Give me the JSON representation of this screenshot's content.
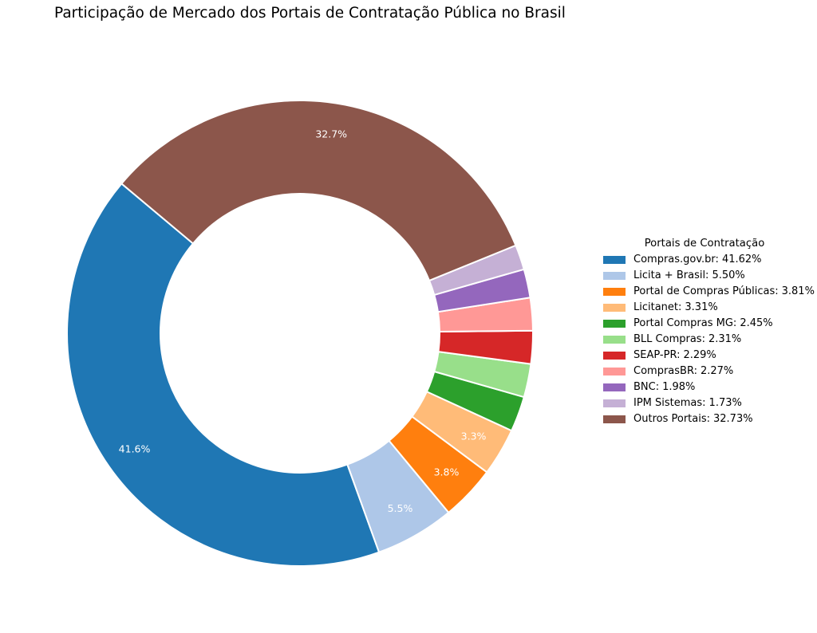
{
  "chart_data": {
    "type": "pie",
    "title": "Participação de Mercado dos Portais de Contratação Pública no Brasil",
    "legend_title": "Portais de Contratação",
    "legend_placement": "right",
    "slices": [
      {
        "label": "Compras.gov.br",
        "value": 41.62,
        "pct_label": "41.6%",
        "legend_value": "41.62%",
        "color": "#1f77b4"
      },
      {
        "label": "Licita + Brasil",
        "value": 5.5,
        "pct_label": "5.5%",
        "legend_value": "5.50%",
        "color": "#aec7e8"
      },
      {
        "label": "Portal de Compras Públicas",
        "value": 3.81,
        "pct_label": "3.8%",
        "legend_value": "3.81%",
        "color": "#ff7f0e"
      },
      {
        "label": "Licitanet",
        "value": 3.31,
        "pct_label": "3.3%",
        "legend_value": "3.31%",
        "color": "#ffbb78"
      },
      {
        "label": "Portal Compras MG",
        "value": 2.45,
        "pct_label": "",
        "legend_value": "2.45%",
        "color": "#2ca02c"
      },
      {
        "label": "BLL Compras",
        "value": 2.31,
        "pct_label": "",
        "legend_value": "2.31%",
        "color": "#98df8a"
      },
      {
        "label": "SEAP-PR",
        "value": 2.29,
        "pct_label": "",
        "legend_value": "2.29%",
        "color": "#d62728"
      },
      {
        "label": "ComprasBR",
        "value": 2.27,
        "pct_label": "",
        "legend_value": "2.27%",
        "color": "#ff9896"
      },
      {
        "label": "BNC",
        "value": 1.98,
        "pct_label": "",
        "legend_value": "1.98%",
        "color": "#9467bd"
      },
      {
        "label": "IPM Sistemas",
        "value": 1.73,
        "pct_label": "",
        "legend_value": "1.73%",
        "color": "#c5b0d5"
      },
      {
        "label": "Outros Portais",
        "value": 32.73,
        "pct_label": "32.7%",
        "legend_value": "32.73%",
        "color": "#8c564b"
      }
    ]
  }
}
